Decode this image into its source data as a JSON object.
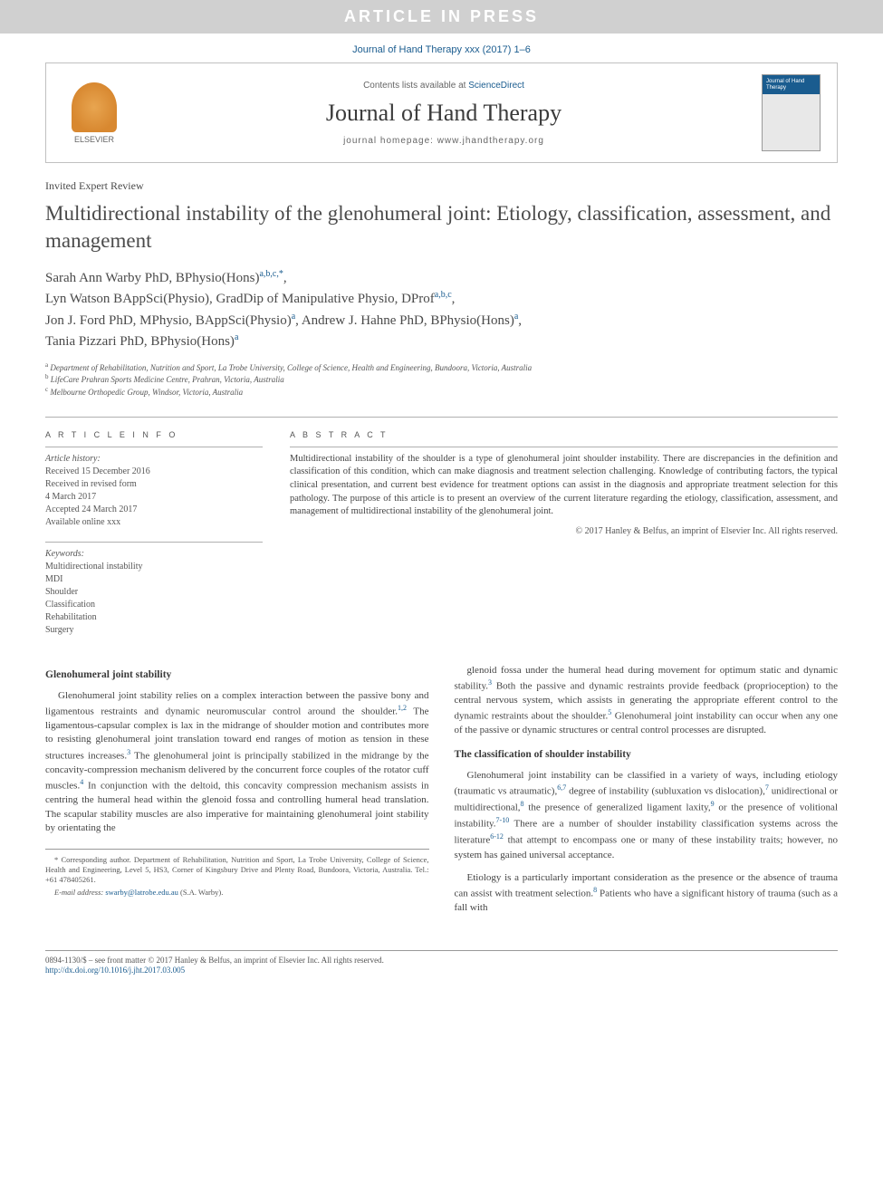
{
  "banner": "ARTICLE IN PRESS",
  "journal_ref": "Journal of Hand Therapy xxx (2017) 1–6",
  "header": {
    "contents_prefix": "Contents lists available at ",
    "contents_link": "ScienceDirect",
    "journal_title": "Journal of Hand Therapy",
    "homepage_prefix": "journal homepage: ",
    "homepage_url": "www.jhandtherapy.org",
    "elsevier_label": "ELSEVIER",
    "cover_label": "Journal of\nHand Therapy"
  },
  "article": {
    "type": "Invited Expert Review",
    "title": "Multidirectional instability of the glenohumeral joint: Etiology, classification, assessment, and management",
    "authors_html": "Sarah Ann Warby PhD, BPhysio(Hons)|a,b,c,*|,\nLyn Watson BAppSci(Physio), GradDip of Manipulative Physio, DProf|a,b,c|,\nJon J. Ford PhD, MPhysio, BAppSci(Physio)|a|, Andrew J. Hahne PhD, BPhysio(Hons)|a|,\nTania Pizzari PhD, BPhysio(Hons)|a|",
    "affiliations": [
      {
        "sup": "a",
        "text": "Department of Rehabilitation, Nutrition and Sport, La Trobe University, College of Science, Health and Engineering, Bundoora, Victoria, Australia"
      },
      {
        "sup": "b",
        "text": "LifeCare Prahran Sports Medicine Centre, Prahran, Victoria, Australia"
      },
      {
        "sup": "c",
        "text": "Melbourne Orthopedic Group, Windsor, Victoria, Australia"
      }
    ]
  },
  "info": {
    "label": "A R T I C L E   I N F O",
    "history_label": "Article history:",
    "history": [
      "Received 15 December 2016",
      "Received in revised form",
      "4 March 2017",
      "Accepted 24 March 2017",
      "Available online xxx"
    ],
    "keywords_label": "Keywords:",
    "keywords": [
      "Multidirectional instability",
      "MDI",
      "Shoulder",
      "Classification",
      "Rehabilitation",
      "Surgery"
    ]
  },
  "abstract": {
    "label": "A B S T R A C T",
    "text": "Multidirectional instability of the shoulder is a type of glenohumeral joint shoulder instability. There are discrepancies in the definition and classification of this condition, which can make diagnosis and treatment selection challenging. Knowledge of contributing factors, the typical clinical presentation, and current best evidence for treatment options can assist in the diagnosis and appropriate treatment selection for this pathology. The purpose of this article is to present an overview of the current literature regarding the etiology, classification, assessment, and management of multidirectional instability of the glenohumeral joint.",
    "copyright": "© 2017 Hanley & Belfus, an imprint of Elsevier Inc. All rights reserved."
  },
  "body": {
    "sec1_title": "Glenohumeral joint stability",
    "sec1_p1": "Glenohumeral joint stability relies on a complex interaction between the passive bony and ligamentous restraints and dynamic neuromuscular control around the shoulder.|1,2| The ligamentous-capsular complex is lax in the midrange of shoulder motion and contributes more to resisting glenohumeral joint translation toward end ranges of motion as tension in these structures increases.|3| The glenohumeral joint is principally stabilized in the midrange by the concavity-compression mechanism delivered by the concurrent force couples of the rotator cuff muscles.|4| In conjunction with the deltoid, this concavity compression mechanism assists in centring the humeral head within the glenoid fossa and controlling humeral head translation. The scapular stability muscles are also imperative for maintaining glenohumeral joint stability by orientating the",
    "sec1_p2": "glenoid fossa under the humeral head during movement for optimum static and dynamic stability.|3| Both the passive and dynamic restraints provide feedback (proprioception) to the central nervous system, which assists in generating the appropriate efferent control to the dynamic restraints about the shoulder.|5| Glenohumeral joint instability can occur when any one of the passive or dynamic structures or central control processes are disrupted.",
    "sec2_title": "The classification of shoulder instability",
    "sec2_p1": "Glenohumeral joint instability can be classified in a variety of ways, including etiology (traumatic vs atraumatic),|6,7| degree of instability (subluxation vs dislocation),|7| unidirectional or multidirectional,|8| the presence of generalized ligament laxity,|9| or the presence of volitional instability.|7-10| There are a number of shoulder instability classification systems across the literature|6-12| that attempt to encompass one or many of these instability traits; however, no system has gained universal acceptance.",
    "sec2_p2": "Etiology is a particularly important consideration as the presence or the absence of trauma can assist with treatment selection.|8| Patients who have a significant history of trauma (such as a fall with"
  },
  "corr": {
    "star": "*",
    "text": "Corresponding author. Department of Rehabilitation, Nutrition and Sport, La Trobe University, College of Science, Health and Engineering, Level 5, HS3, Corner of Kingsbury Drive and Plenty Road, Bundoora, Victoria, Australia. Tel.: +61 478405261.",
    "email_label": "E-mail address: ",
    "email": "swarby@latrobe.edu.au",
    "email_suffix": " (S.A. Warby)."
  },
  "footer": {
    "line1": "0894-1130/$ – see front matter © 2017 Hanley & Belfus, an imprint of Elsevier Inc. All rights reserved.",
    "doi": "http://dx.doi.org/10.1016/j.jht.2017.03.005"
  },
  "colors": {
    "link": "#1a5c8f",
    "banner_bg": "#d0d0d0",
    "text": "#4a4a4a"
  }
}
